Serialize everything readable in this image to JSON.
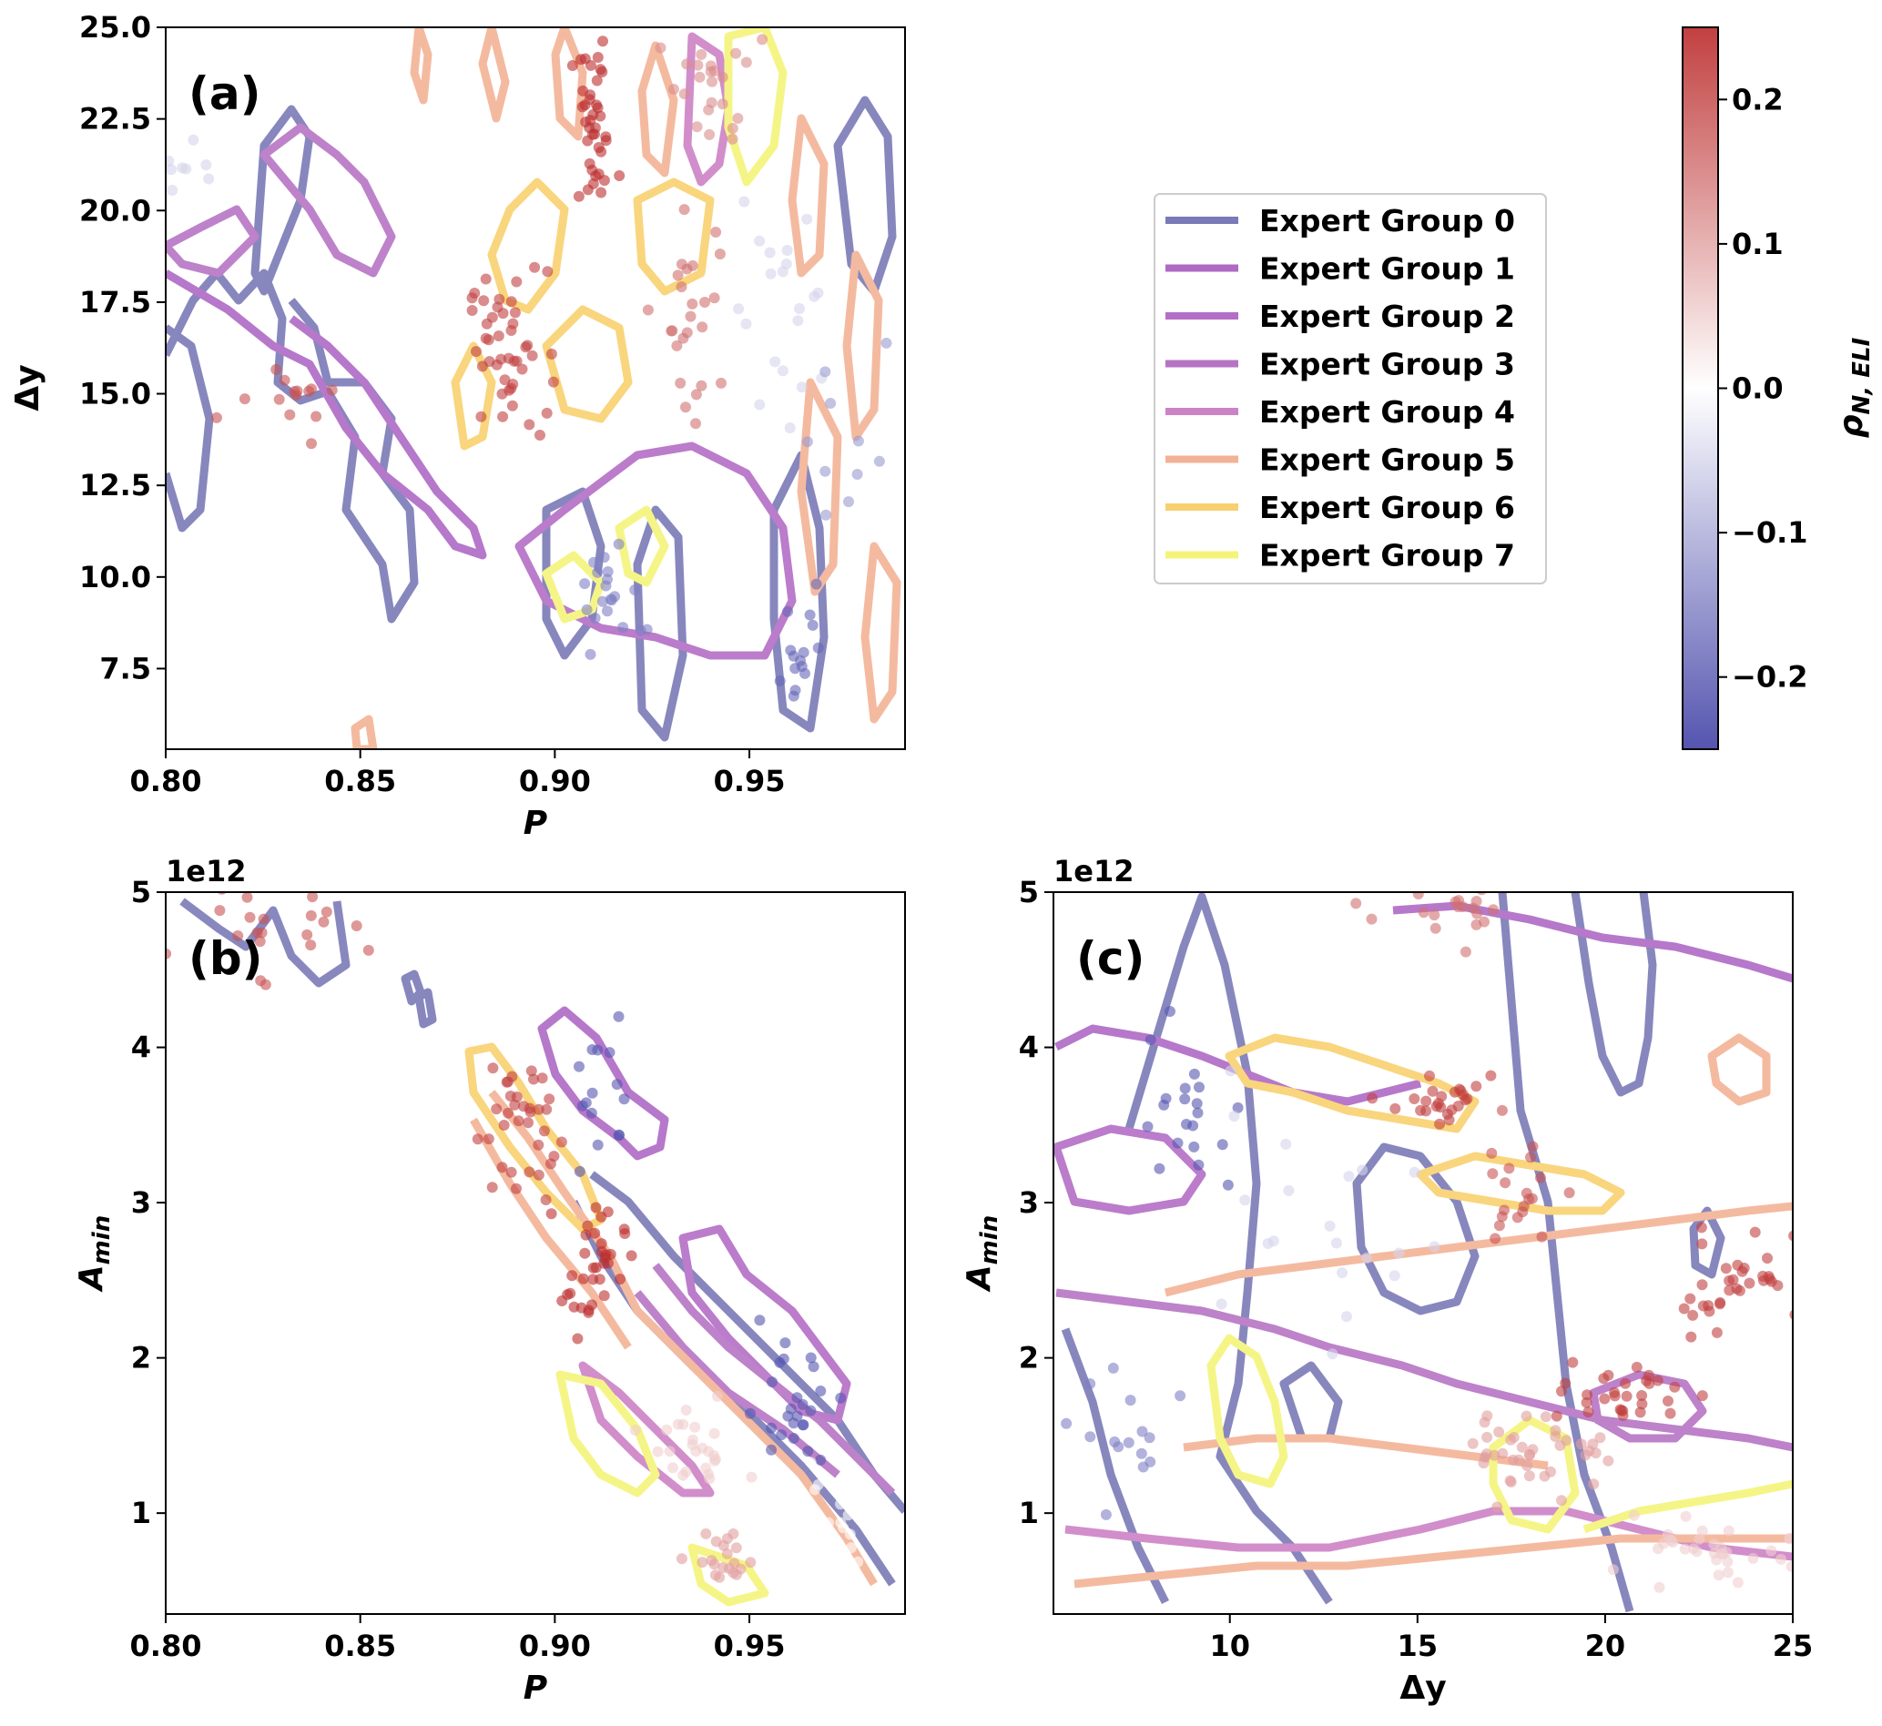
{
  "colors": {
    "groups": [
      "#5a5aa6",
      "#9b45b6",
      "#a24bb8",
      "#a453b5",
      "#c064b8",
      "#f0a07c",
      "#f7c54c",
      "#f2f25a"
    ],
    "rho_low": "#2a2a9c",
    "rho_mid": "#ffffff",
    "rho_high": "#b31010"
  },
  "legend": {
    "placement": "center-right",
    "entries": [
      "Expert Group 0",
      "Expert Group 1",
      "Expert Group 2",
      "Expert Group 3",
      "Expert Group 4",
      "Expert Group 5",
      "Expert Group 6",
      "Expert Group 7"
    ]
  },
  "colorbar": {
    "label": "ρN, ELI",
    "label_main": "ρ",
    "label_sub": "N, ELI",
    "range": [
      -0.25,
      0.25
    ],
    "ticks": [
      0.2,
      0.1,
      0.0,
      -0.1,
      -0.2
    ],
    "tick_labels": [
      "0.2",
      "0.1",
      "0.0",
      "−0.1",
      "−0.2"
    ],
    "colors": [
      "#2a2a9c",
      "#ffffff",
      "#b31010"
    ]
  },
  "chart_data": [
    {
      "type": "scatter",
      "panel_label": "(a)",
      "xlabel": "P",
      "ylabel": "Δy",
      "xlim": [
        0.8,
        0.99
      ],
      "ylim": [
        5.3,
        25.0
      ],
      "xticks": [
        0.8,
        0.85,
        0.9,
        0.95
      ],
      "xtick_labels": [
        "0.80",
        "0.85",
        "0.90",
        "0.95"
      ],
      "yticks": [
        7.5,
        10.0,
        12.5,
        15.0,
        17.5,
        20.0,
        22.5,
        25.0
      ],
      "ytick_labels": [
        "7.5",
        "10.0",
        "12.5",
        "15.0",
        "17.5",
        "20.0",
        "22.5",
        "25.0"
      ],
      "offset_label": "",
      "grid": false,
      "clusters": [
        {
          "x": 0.91,
          "y": 22.2,
          "rho": 0.22,
          "n": 40,
          "sx": 0.003,
          "sy": 1.2
        },
        {
          "x": 0.888,
          "y": 16.2,
          "rho": 0.2,
          "n": 45,
          "sx": 0.005,
          "sy": 1.1
        },
        {
          "x": 0.83,
          "y": 14.6,
          "rho": 0.18,
          "n": 14,
          "sx": 0.008,
          "sy": 0.5
        },
        {
          "x": 0.94,
          "y": 23.5,
          "rho": 0.12,
          "n": 25,
          "sx": 0.005,
          "sy": 1.0
        },
        {
          "x": 0.937,
          "y": 17.5,
          "rho": 0.15,
          "n": 25,
          "sx": 0.004,
          "sy": 1.6
        },
        {
          "x": 0.915,
          "y": 9.5,
          "rho": -0.15,
          "n": 20,
          "sx": 0.006,
          "sy": 0.8
        },
        {
          "x": 0.963,
          "y": 8.0,
          "rho": -0.18,
          "n": 15,
          "sx": 0.003,
          "sy": 0.9
        },
        {
          "x": 0.96,
          "y": 18.0,
          "rho": -0.05,
          "n": 20,
          "sx": 0.008,
          "sy": 2.0
        },
        {
          "x": 0.975,
          "y": 14.0,
          "rho": -0.12,
          "n": 10,
          "sx": 0.005,
          "sy": 2.0
        },
        {
          "x": 0.805,
          "y": 21.0,
          "rho": -0.05,
          "n": 8,
          "sx": 0.003,
          "sy": 0.5
        }
      ]
    },
    {
      "type": "scatter",
      "panel_label": "(b)",
      "xlabel": "P",
      "ylabel": "Amin",
      "ylabel_main": "A",
      "ylabel_sub": "min",
      "xlim": [
        0.8,
        0.99
      ],
      "ylim": [
        350000000000.0,
        5000000000000.0
      ],
      "xticks": [
        0.8,
        0.85,
        0.9,
        0.95
      ],
      "xtick_labels": [
        "0.80",
        "0.85",
        "0.90",
        "0.95"
      ],
      "yticks": [
        1000000000000.0,
        2000000000000.0,
        3000000000000.0,
        4000000000000.0,
        5000000000000.0
      ],
      "ytick_labels": [
        "1",
        "2",
        "3",
        "4",
        "5"
      ],
      "offset_label": "1e12",
      "grid": false,
      "clusters": [
        {
          "x": 0.89,
          "y": 3500000000000.0,
          "rho": 0.2,
          "n": 35,
          "sx": 0.005,
          "sy": 250000000000.0
        },
        {
          "x": 0.91,
          "y": 2600000000000.0,
          "rho": 0.22,
          "n": 35,
          "sx": 0.004,
          "sy": 200000000000.0
        },
        {
          "x": 0.912,
          "y": 3700000000000.0,
          "rho": -0.2,
          "n": 15,
          "sx": 0.004,
          "sy": 250000000000.0
        },
        {
          "x": 0.96,
          "y": 1700000000000.0,
          "rho": -0.2,
          "n": 25,
          "sx": 0.006,
          "sy": 200000000000.0
        },
        {
          "x": 0.935,
          "y": 1400000000000.0,
          "rho": 0.05,
          "n": 25,
          "sx": 0.006,
          "sy": 150000000000.0
        },
        {
          "x": 0.945,
          "y": 700000000000.0,
          "rho": 0.1,
          "n": 20,
          "sx": 0.005,
          "sy": 100000000000.0
        },
        {
          "x": 0.825,
          "y": 4800000000000.0,
          "rho": 0.18,
          "n": 20,
          "sx": 0.01,
          "sy": 150000000000.0
        },
        {
          "x": 0.97,
          "y": 1000000000000.0,
          "rho": 0.0,
          "n": 20,
          "sx": 0.008,
          "sy": 200000000000.0
        }
      ]
    },
    {
      "type": "scatter",
      "panel_label": "(c)",
      "xlabel": "Δy",
      "ylabel": "Amin",
      "ylabel_main": "A",
      "ylabel_sub": "min",
      "xlim": [
        5.3,
        25.0
      ],
      "ylim": [
        350000000000.0,
        5000000000000.0
      ],
      "xticks": [
        10,
        15,
        20,
        25
      ],
      "xtick_labels": [
        "10",
        "15",
        "20",
        "25"
      ],
      "yticks": [
        1000000000000.0,
        2000000000000.0,
        3000000000000.0,
        4000000000000.0,
        5000000000000.0
      ],
      "ytick_labels": [
        "1",
        "2",
        "3",
        "4",
        "5"
      ],
      "offset_label": "1e12",
      "grid": false,
      "clusters": [
        {
          "x": 15.5,
          "y": 3650000000000.0,
          "rho": 0.2,
          "n": 25,
          "sx": 0.8,
          "sy": 100000000000.0
        },
        {
          "x": 17.5,
          "y": 3000000000000.0,
          "rho": 0.18,
          "n": 20,
          "sx": 0.6,
          "sy": 200000000000.0
        },
        {
          "x": 23.5,
          "y": 2500000000000.0,
          "rho": 0.2,
          "n": 35,
          "sx": 1.0,
          "sy": 150000000000.0
        },
        {
          "x": 20.5,
          "y": 1750000000000.0,
          "rho": 0.2,
          "n": 30,
          "sx": 0.8,
          "sy": 100000000000.0
        },
        {
          "x": 18.3,
          "y": 1400000000000.0,
          "rho": 0.1,
          "n": 40,
          "sx": 1.0,
          "sy": 120000000000.0
        },
        {
          "x": 9.0,
          "y": 3600000000000.0,
          "rho": -0.2,
          "n": 20,
          "sx": 0.8,
          "sy": 300000000000.0
        },
        {
          "x": 7.5,
          "y": 1500000000000.0,
          "rho": -0.15,
          "n": 15,
          "sx": 0.8,
          "sy": 200000000000.0
        },
        {
          "x": 15.5,
          "y": 4850000000000.0,
          "rho": 0.15,
          "n": 20,
          "sx": 1.0,
          "sy": 100000000000.0
        },
        {
          "x": 23.0,
          "y": 700000000000.0,
          "rho": 0.05,
          "n": 35,
          "sx": 1.5,
          "sy": 100000000000.0
        },
        {
          "x": 12.0,
          "y": 2800000000000.0,
          "rho": -0.05,
          "n": 20,
          "sx": 2.0,
          "sy": 400000000000.0
        }
      ]
    }
  ]
}
